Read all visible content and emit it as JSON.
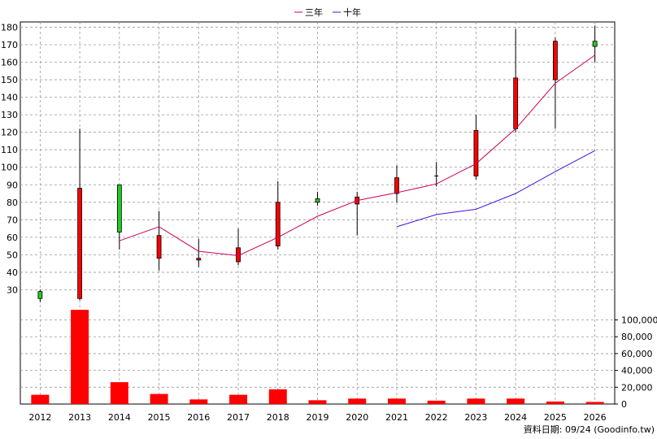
{
  "chart_data": {
    "type": "candlestick",
    "years": [
      "2012",
      "2013",
      "2014",
      "2015",
      "2016",
      "2017",
      "2018",
      "2019",
      "2020",
      "2021",
      "2022",
      "2023",
      "2024",
      "2025",
      "2026"
    ],
    "price_axis": {
      "ylim": [
        20,
        183
      ],
      "ticks": [
        30,
        40,
        50,
        60,
        70,
        80,
        90,
        100,
        110,
        120,
        130,
        140,
        150,
        160,
        170,
        180
      ]
    },
    "candles": [
      {
        "year": "2012",
        "open": 25,
        "close": 29,
        "high": 30,
        "low": 23
      },
      {
        "year": "2013",
        "open": 88,
        "close": 25,
        "high": 122,
        "low": 24
      },
      {
        "year": "2014",
        "open": 63,
        "close": 90,
        "high": 90,
        "low": 53
      },
      {
        "year": "2015",
        "open": 61,
        "close": 48,
        "high": 75,
        "low": 41
      },
      {
        "year": "2016",
        "open": 48,
        "close": 47,
        "high": 59,
        "low": 43
      },
      {
        "year": "2017",
        "open": 54,
        "close": 46,
        "high": 65,
        "low": 44
      },
      {
        "year": "2018",
        "open": 80,
        "close": 55,
        "high": 92,
        "low": 53
      },
      {
        "year": "2019",
        "open": 80,
        "close": 82,
        "high": 86,
        "low": 78
      },
      {
        "year": "2020",
        "open": 83,
        "close": 79,
        "high": 86,
        "low": 61
      },
      {
        "year": "2021",
        "open": 94,
        "close": 85,
        "high": 101,
        "low": 80
      },
      {
        "year": "2022",
        "open": 95,
        "close": 95,
        "high": 103,
        "low": 89
      },
      {
        "year": "2023",
        "open": 121,
        "close": 95,
        "high": 130,
        "low": 93
      },
      {
        "year": "2024",
        "open": 151,
        "close": 122,
        "high": 179,
        "low": 120
      },
      {
        "year": "2025",
        "open": 172,
        "close": 150,
        "high": 174,
        "low": 122
      },
      {
        "year": "2026",
        "open": 169,
        "close": 172,
        "high": 181,
        "low": 160
      }
    ],
    "series": [
      {
        "name": "三年",
        "color": "#cc0055",
        "x": [
          "2014",
          "2015",
          "2016",
          "2017",
          "2018",
          "2019",
          "2020",
          "2021",
          "2022",
          "2023",
          "2024",
          "2025",
          "2026"
        ],
        "values": [
          58,
          66,
          52,
          49.5,
          60,
          72,
          81,
          85.5,
          90.5,
          102,
          122,
          148,
          164
        ]
      },
      {
        "name": "十年",
        "color": "#4411dd",
        "x": [
          "2021",
          "2022",
          "2023",
          "2024",
          "2025",
          "2026"
        ],
        "values": [
          66,
          73,
          76,
          85,
          97.5,
          109.5
        ]
      }
    ],
    "volume_axis": {
      "ylim": [
        0,
        115000
      ],
      "ticks": [
        0,
        20000,
        40000,
        60000,
        80000,
        100000
      ],
      "tick_labels": [
        "0",
        "20,000",
        "40,000",
        "60,000",
        "80,000",
        "100,000"
      ]
    },
    "volume": [
      11000,
      112000,
      26000,
      12000,
      5500,
      11000,
      17500,
      4500,
      6500,
      6500,
      4000,
      6500,
      6500,
      3000,
      2500
    ],
    "colors": {
      "up": "#22cc22",
      "down": "#ff0000",
      "volume": "#ff0000",
      "grid": "#999999",
      "panel_bg": "#ffffff"
    },
    "legend_position": "top-center",
    "footer_note": "資料日期: 09/24 (Goodinfo.tw)",
    "grid": true
  }
}
